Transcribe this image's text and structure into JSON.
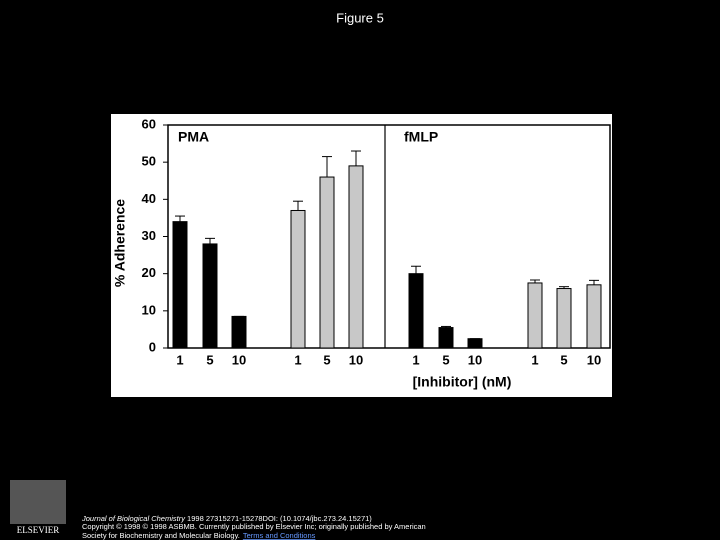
{
  "slide_title": "Figure 5",
  "chart_data": {
    "type": "bar",
    "y_label": "% Adherence",
    "x_label": "[Inhibitor] (nM)",
    "ylim": [
      0,
      60
    ],
    "yticks": [
      0,
      10,
      20,
      30,
      40,
      50,
      60
    ],
    "panels": [
      {
        "label": "PMA",
        "series": [
          {
            "color": "#000000",
            "categories": [
              "1",
              "5",
              "10"
            ],
            "values": [
              34,
              28,
              8.5
            ],
            "errors": [
              1.5,
              1.5,
              0
            ]
          },
          {
            "color": "#c8c8c8",
            "categories": [
              "1",
              "5",
              "10"
            ],
            "values": [
              37,
              46,
              49
            ],
            "errors": [
              2.5,
              5.5,
              4
            ]
          }
        ]
      },
      {
        "label": "fMLP",
        "series": [
          {
            "color": "#000000",
            "categories": [
              "1",
              "5",
              "10"
            ],
            "values": [
              20,
              5.5,
              2.5
            ],
            "errors": [
              2,
              0.3,
              0
            ]
          },
          {
            "color": "#c8c8c8",
            "categories": [
              "1",
              "5",
              "10"
            ],
            "values": [
              17.5,
              16,
              17
            ],
            "errors": [
              0.8,
              0.5,
              1.2
            ]
          }
        ]
      }
    ]
  },
  "footer": {
    "logo": "ELSEVIER",
    "journal": "Journal of Biological Chemistry",
    "citation": " 1998 27315271-15278DOI: (10.1074/jbc.273.24.15271)",
    "copyright": "Copyright © 1998 © 1998 ASBMB. Currently published by Elsevier Inc; originally published by American",
    "copyright2": "Society for Biochemistry and Molecular Biology.",
    "link": "Terms and Conditions"
  }
}
